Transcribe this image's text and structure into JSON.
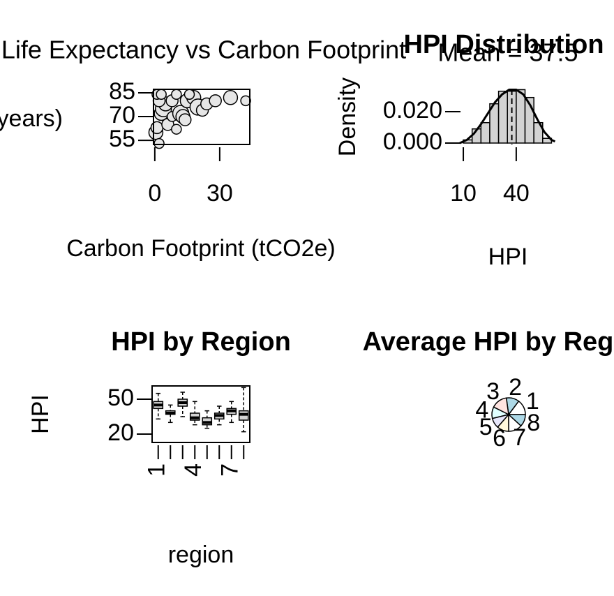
{
  "chart_data": [
    {
      "type": "scatter",
      "title": "Life Expectancy vs Carbon Footprint",
      "xlabel": "Carbon Footprint (tCO2e)",
      "ylabel": "Life Expectancy (years)",
      "x": [
        0.5,
        1,
        2,
        3,
        4,
        5,
        2,
        6,
        8,
        10,
        12,
        13,
        14,
        15,
        18,
        20,
        22,
        24,
        35,
        42,
        28,
        8,
        1,
        3,
        10,
        16
      ],
      "y": [
        60,
        63,
        53,
        72,
        75,
        78,
        80,
        65,
        70,
        62,
        72,
        70,
        68,
        80,
        82,
        76,
        74,
        78,
        82,
        80,
        80,
        80,
        84,
        84,
        84,
        84
      ],
      "sizes": [
        2,
        1.5,
        1,
        2,
        2.5,
        2,
        1.5,
        1.5,
        1,
        1,
        2.5,
        2,
        1.5,
        2,
        2,
        2.5,
        1.5,
        1.5,
        2,
        1,
        1.5,
        1.5,
        1,
        1,
        1,
        1
      ],
      "color": "#e6e6e6",
      "xlim": [
        -0.6,
        43.9
      ],
      "ylim": [
        52.4,
        87.2
      ],
      "xticks": [
        0,
        30
      ],
      "yticks": [
        55,
        70,
        85
      ]
    },
    {
      "type": "histogram",
      "title": "HPI Distribution",
      "subtitle": {
        "value": 37.5,
        "label": "Mean = 37.5"
      },
      "xlabel": "HPI",
      "ylabel": "Density",
      "bins": [
        10,
        15,
        20,
        25,
        30,
        35,
        40,
        45,
        50,
        55,
        60
      ],
      "counts": [
        0.002,
        0.009,
        0.013,
        0.025,
        0.033,
        0.033,
        0.034,
        0.029,
        0.013,
        0.003
      ],
      "density_x": [
        8,
        12,
        16,
        20,
        24,
        28,
        32,
        36,
        40,
        44,
        48,
        52,
        56,
        60,
        62
      ],
      "density_y": [
        0.0,
        0.002,
        0.006,
        0.012,
        0.019,
        0.026,
        0.031,
        0.034,
        0.034,
        0.031,
        0.024,
        0.015,
        0.007,
        0.002,
        0.001
      ],
      "color": "#d3d3d3",
      "xlim": [
        8.4,
        62.6
      ],
      "ylim": [
        -0.0009,
        0.0342
      ],
      "xticks": [
        10,
        40
      ],
      "yticks": [
        {
          "value": 0,
          "label": "0.000"
        },
        {
          "value": 0.02,
          "label": "0.020"
        }
      ]
    },
    {
      "type": "box",
      "title": "HPI by Region",
      "xlabel": "region",
      "ylabel": "HPI",
      "categories": [
        "1",
        null,
        null,
        "4",
        null,
        null,
        "7",
        null
      ],
      "boxes": [
        {
          "min": 33,
          "q1": 42,
          "median": 45,
          "q3": 48,
          "max": 55
        },
        {
          "min": 30,
          "q1": 37,
          "median": 38,
          "q3": 40,
          "max": 45
        },
        {
          "min": 35,
          "q1": 44,
          "median": 47,
          "q3": 50,
          "max": 56
        },
        {
          "min": 28,
          "q1": 32,
          "median": 34,
          "q3": 38,
          "max": 48
        },
        {
          "min": 25,
          "q1": 28,
          "median": 30,
          "q3": 34,
          "max": 40
        },
        {
          "min": 28,
          "q1": 33,
          "median": 36,
          "q3": 38,
          "max": 44
        },
        {
          "min": 30,
          "q1": 37,
          "median": 40,
          "q3": 42,
          "max": 48
        },
        {
          "min": 22,
          "q1": 32,
          "median": 37,
          "q3": 40,
          "max": 60
        }
      ],
      "color": "#d3d3d3",
      "ylim": [
        12.8,
        61.4
      ],
      "yticks": [
        20,
        50
      ]
    },
    {
      "type": "pie",
      "title": "Average HPI by Region",
      "categories": [
        "1",
        "2",
        "3",
        "4",
        "5",
        "6",
        "7",
        "8"
      ],
      "values": [
        45,
        38,
        47,
        34,
        30,
        35,
        40,
        36
      ],
      "colors": [
        "#ffffff",
        "#add8e6",
        "#ffe4e1",
        "#e0ffff",
        "#e6e6fa",
        "#fff8dc",
        "#ffffff",
        "#add8e6"
      ]
    }
  ]
}
